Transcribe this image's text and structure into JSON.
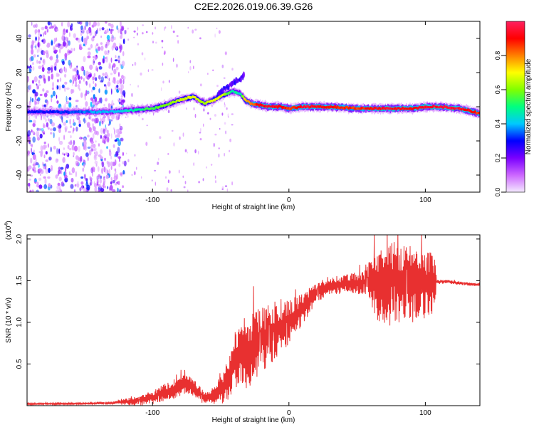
{
  "figure": {
    "title": "C2E2.2026.019.06.39.G26"
  },
  "chart_data": [
    {
      "type": "heatmap",
      "name": "spectrogram",
      "xlabel": "Height of straight line (km)",
      "ylabel": "Frequency (Hz)",
      "xlim": [
        -192,
        140
      ],
      "ylim": [
        -50,
        50
      ],
      "xticks": [
        -100,
        0,
        100
      ],
      "xtick_labels": [
        "-100",
        "0",
        "100"
      ],
      "yticks": [
        -40,
        -20,
        0,
        20,
        40
      ],
      "ytick_labels": [
        "-40",
        "-20",
        "0",
        "20",
        "40"
      ],
      "colorbar": {
        "label": "Normalized spectral amplitude",
        "range": [
          0,
          1
        ],
        "ticks": [
          0.0,
          0.2,
          0.4,
          0.6,
          0.8
        ],
        "tick_labels": [
          "0.0",
          "0.2",
          "0.4",
          "0.6",
          "0.8"
        ],
        "colors": [
          "#f4eaff",
          "#cc66ff",
          "#7a00ff",
          "#0000ff",
          "#00c8ff",
          "#00ff80",
          "#80ff00",
          "#ffff00",
          "#ff8000",
          "#ff0000",
          "#ff2060"
        ]
      },
      "ridge": {
        "x": [
          -192,
          -170,
          -150,
          -130,
          -115,
          -100,
          -90,
          -80,
          -70,
          -62,
          -55,
          -48,
          -42,
          -36,
          -32,
          -28,
          -22,
          -15,
          -5,
          0,
          10,
          30,
          50,
          70,
          90,
          100,
          110,
          125,
          135,
          140
        ],
        "freq": [
          -3,
          -3,
          -3,
          -3,
          -2,
          -1,
          1,
          4,
          6,
          2,
          4,
          7,
          9,
          8,
          4,
          2,
          1,
          0,
          0,
          -1,
          0,
          0,
          -1,
          -1,
          -1,
          0,
          0,
          -1,
          -3,
          -4
        ],
        "level": [
          0.3,
          0.3,
          0.35,
          0.4,
          0.45,
          0.55,
          0.6,
          0.65,
          0.7,
          0.6,
          0.7,
          0.65,
          0.5,
          0.45,
          0.75,
          0.8,
          0.9,
          0.95,
          0.9,
          0.85,
          0.95,
          0.9,
          0.85,
          0.95,
          0.9,
          0.95,
          0.95,
          0.95,
          0.9,
          0.85
        ]
      },
      "noise_region": [
        -192,
        -120
      ],
      "secondary_branch": {
        "x": [
          -52,
          -46,
          -40,
          -35,
          -33
        ],
        "freq": [
          8,
          11,
          14,
          17,
          19
        ],
        "level": 0.25
      }
    },
    {
      "type": "line",
      "name": "snr",
      "xlabel": "Height of straight line (km)",
      "ylabel": "SNR (10 * v/v)",
      "y_multiplier_label": "(x10",
      "y_multiplier_exp": "4",
      "y_multiplier_close": ")",
      "xlim": [
        -192,
        140
      ],
      "ylim": [
        0,
        20500
      ],
      "xticks": [
        -100,
        0,
        100
      ],
      "xtick_labels": [
        "-100",
        "0",
        "100"
      ],
      "yticks": [
        5000,
        10000,
        15000,
        20000
      ],
      "ytick_labels": [
        "0.5",
        "1.0",
        "1.5",
        "2.0"
      ],
      "color": "#e83030",
      "series": {
        "name": "SNR",
        "envelope_x": [
          -192,
          -150,
          -130,
          -110,
          -100,
          -90,
          -80,
          -75,
          -70,
          -62,
          -55,
          -45,
          -40,
          -35,
          -30,
          -25,
          -20,
          -10,
          0,
          10,
          20,
          30,
          40,
          50,
          60,
          70,
          80,
          90,
          100,
          105,
          108,
          110,
          115,
          120,
          130,
          140
        ],
        "envelope_y": [
          200,
          250,
          320,
          600,
          1000,
          1600,
          2200,
          2600,
          2100,
          900,
          1300,
          2800,
          5200,
          6800,
          6200,
          7200,
          7800,
          9000,
          10000,
          11600,
          13600,
          14300,
          14600,
          14700,
          14800,
          14700,
          15000,
          14500,
          14700,
          14700,
          14900,
          14800,
          14900,
          14800,
          14600,
          14500
        ],
        "noise_x": [
          -192,
          -130,
          -120,
          -100,
          -90,
          -80,
          -70,
          -60,
          -50,
          -40,
          -30,
          -20,
          -10,
          0,
          10,
          20,
          40,
          55,
          60,
          65,
          70,
          80,
          90,
          100,
          107,
          108,
          140
        ],
        "noise_amp": [
          80,
          100,
          350,
          700,
          900,
          1100,
          1000,
          500,
          1500,
          2800,
          3800,
          3500,
          2800,
          2200,
          1600,
          1000,
          900,
          1200,
          2500,
          3800,
          4500,
          4200,
          3800,
          3500,
          3000,
          200,
          150
        ]
      }
    }
  ]
}
